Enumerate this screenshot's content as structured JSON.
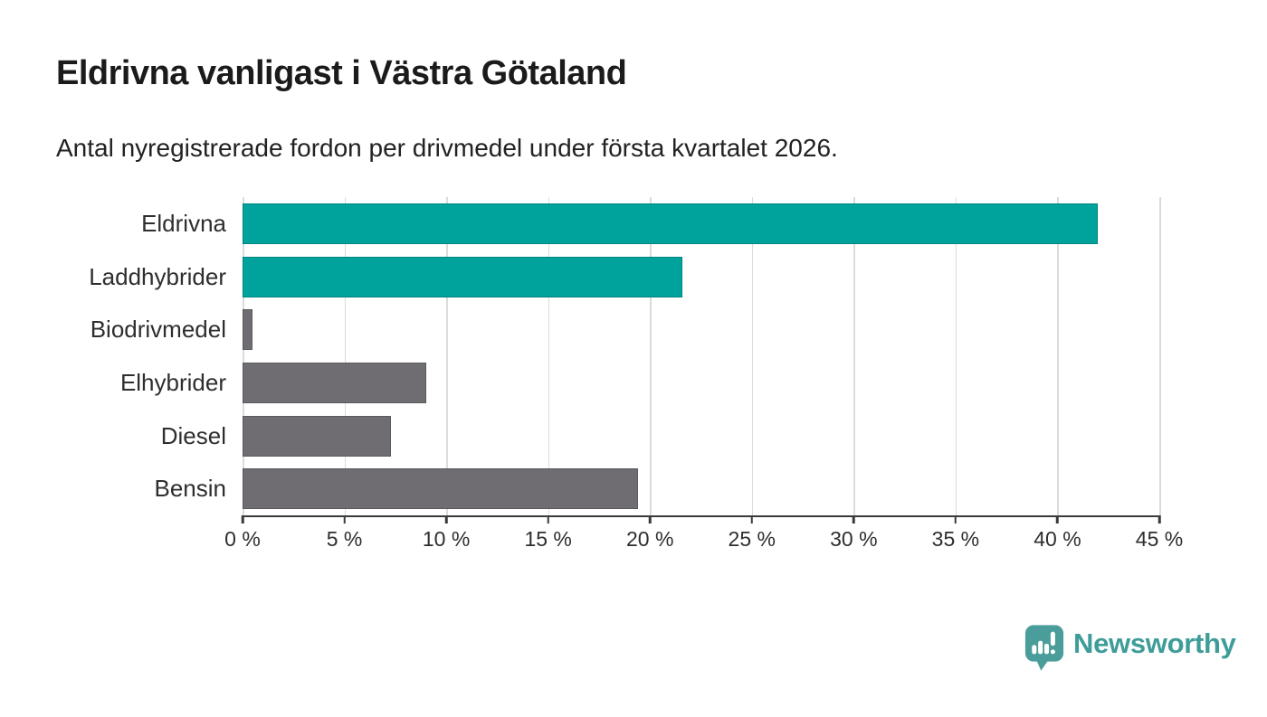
{
  "header": {
    "title": "Eldrivna vanligast i Västra Götaland",
    "subtitle": "Antal nyregistrerade fordon per drivmedel under första kvartalet 2026."
  },
  "chart_data": {
    "type": "bar",
    "orientation": "horizontal",
    "title": "Eldrivna vanligast i Västra Götaland",
    "subtitle": "Antal nyregistrerade fordon per drivmedel under första kvartalet 2026.",
    "categories": [
      "Eldrivna",
      "Laddhybrider",
      "Biodrivmedel",
      "Elhybrider",
      "Diesel",
      "Bensin"
    ],
    "values": [
      42.0,
      21.6,
      0.5,
      9.0,
      7.3,
      19.4
    ],
    "unit": "%",
    "xlabel": "",
    "ylabel": "",
    "xlim": [
      0,
      45
    ],
    "x_ticks": [
      0,
      5,
      10,
      15,
      20,
      25,
      30,
      35,
      40,
      45
    ],
    "x_tick_labels": [
      "0 %",
      "5 %",
      "10 %",
      "15 %",
      "20 %",
      "25 %",
      "30 %",
      "35 %",
      "40 %",
      "45 %"
    ],
    "grid": "vertical-only",
    "legend": "none",
    "bar_colors": [
      "#00A39B",
      "#00A39B",
      "#6F6D72",
      "#6F6D72",
      "#6F6D72",
      "#6F6D72"
    ],
    "highlight_color": "#00A39B",
    "default_color": "#6F6D72",
    "gridline_color": "#dbdbdb",
    "axis_color": "#3a3a3a"
  },
  "footer": {
    "brand": "Newsworthy",
    "brand_color": "#3E9C99",
    "logo_color": "#4A9D9A",
    "logo_icon": "bar-chart-speech-bubble"
  }
}
